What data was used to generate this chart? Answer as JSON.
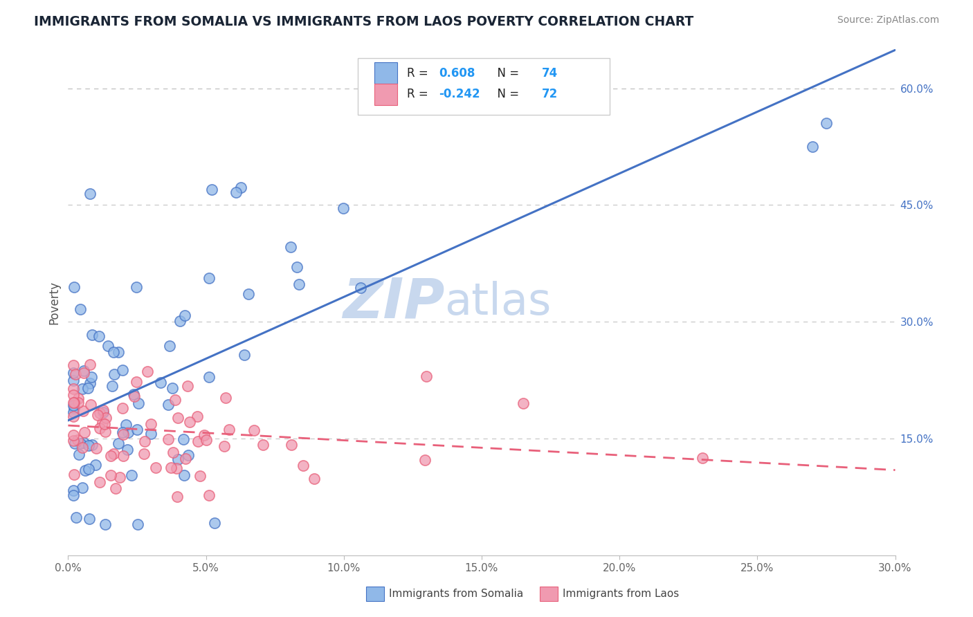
{
  "title": "IMMIGRANTS FROM SOMALIA VS IMMIGRANTS FROM LAOS POVERTY CORRELATION CHART",
  "source": "Source: ZipAtlas.com",
  "ylabel": "Poverty",
  "xmin": 0.0,
  "xmax": 0.3,
  "ymin": 0.0,
  "ymax": 0.65,
  "right_yticks": [
    "60.0%",
    "45.0%",
    "30.0%",
    "15.0%"
  ],
  "right_ytick_vals": [
    0.6,
    0.45,
    0.3,
    0.15
  ],
  "somalia_R": 0.608,
  "somalia_N": 74,
  "laos_R": -0.242,
  "laos_N": 72,
  "somalia_color": "#90B8E8",
  "laos_color": "#F09AB0",
  "somalia_line_color": "#4472C4",
  "laos_line_color": "#E8607A",
  "legend_color": "#2196F3",
  "watermark_zip": "ZIP",
  "watermark_atlas": "atlas",
  "watermark_color": "#C8D8EE",
  "background_color": "#FFFFFF",
  "title_color": "#1A2535",
  "source_color": "#888888",
  "grid_color": "#C8C8C8",
  "axis_color": "#AAAAAA"
}
